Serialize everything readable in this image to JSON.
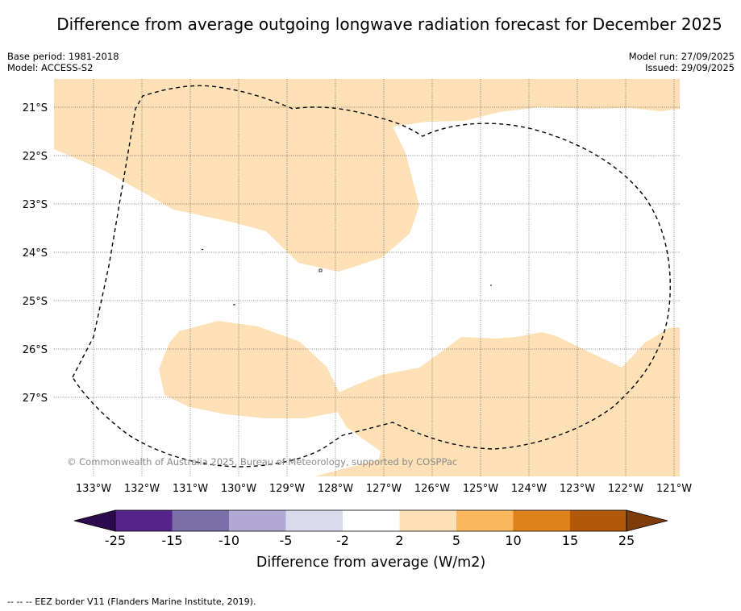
{
  "title": "Difference from average outgoing longwave radiation forecast for December 2025",
  "meta": {
    "base_period": "Base period: 1981-2018",
    "model": "Model: ACCESS-S2",
    "model_run": "Model run: 27/09/2025",
    "issued": "Issued: 29/09/2025"
  },
  "map": {
    "lat_labels": [
      "21°S",
      "22°S",
      "23°S",
      "24°S",
      "25°S",
      "26°S",
      "27°S"
    ],
    "lon_labels": [
      "133°W",
      "132°W",
      "131°W",
      "130°W",
      "129°W",
      "128°W",
      "127°W",
      "126°W",
      "125°W",
      "124°W",
      "123°W",
      "122°W",
      "121°W"
    ],
    "copyright": "© Commonwealth of Australia 2025, Bureau of Meteorology, supported by COSPPac",
    "fill_color": "#fde0b5",
    "fill_category": "2 to 5"
  },
  "colorbar": {
    "label": "Difference from average (W/m2)",
    "ticks": [
      "-25",
      "-15",
      "-10",
      "-5",
      "-2",
      "2",
      "5",
      "10",
      "15",
      "25"
    ],
    "colors": [
      "#2d0a4e",
      "#56238a",
      "#7b6faa",
      "#b1a9d3",
      "#d9daec",
      "#ffffff",
      "#fde0b5",
      "#fbb75e",
      "#e0821c",
      "#b15908",
      "#7f3b08"
    ]
  },
  "footnote": "--  --  -- EEZ border V11 (Flanders Marine Institute, 2019)."
}
